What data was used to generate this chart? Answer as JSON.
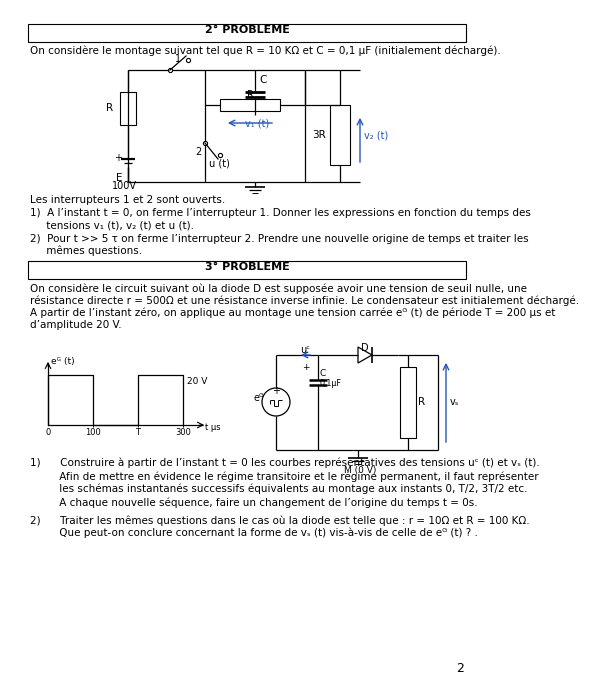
{
  "bg_color": "#ffffff",
  "title2": "2° PROBLEME",
  "title3": "3° PROBLEME",
  "page_number": "2",
  "prob2_intro": "On considère le montage suivant tel que R = 10 KΩ et C = 0,1 μF (initialement déchargé).",
  "prob2_switches": "Les interrupteurs 1 et 2 sont ouverts.",
  "prob2_q1_a": "1)  A l’instant t = 0, on ferme l’interrupteur 1. Donner les expressions en fonction du temps des",
  "prob2_q1_b": "     tensions v₁ (t), v₂ (t) et u (t).",
  "prob2_q2_a": "2)  Pour t >> 5 τ on ferme l’interrupteur 2. Prendre une nouvelle origine de temps et traiter les",
  "prob2_q2_b": "     mêmes questions.",
  "prob3_intro1": "On considère le circuit suivant où la diode D est supposée avoir une tension de seuil nulle, une",
  "prob3_intro2": "résistance directe r = 500Ω et une résistance inverse infinie. Le condensateur est initialement déchargé.",
  "prob3_intro3": "A partir de l’instant zéro, on applique au montage une tension carrée eᴳ (t) de période T = 200 μs et",
  "prob3_intro4": "d’amplitude 20 V.",
  "prob3_q1a": "1)      Construire à partir de l’instant t = 0 les courbes représentatives des tensions uᶜ (t) et vₛ (t).",
  "prob3_q1b": "         Afin de mettre en évidence le régime transitoire et le régime permanent, il faut représenter",
  "prob3_q1c": "         les schémas instantanés successifs équivalents au montage aux instants 0, T/2, 3T/2 etc.",
  "prob3_q1d": "         A chaque nouvelle séquence, faire un changement de l’origine du temps t = 0s.",
  "prob3_q2a": "2)      Traiter les mêmes questions dans le cas où la diode est telle que : r = 10Ω et R = 100 KΩ.",
  "prob3_q2b": "         Que peut-on conclure concernant la forme de vₛ (t) vis-à-vis de celle de eᴳ (t) ? ."
}
